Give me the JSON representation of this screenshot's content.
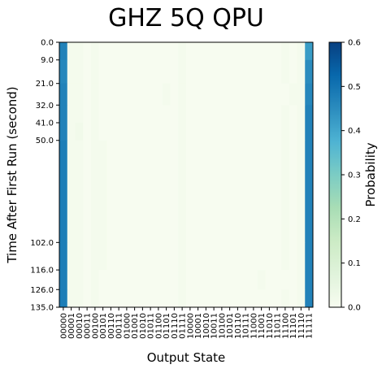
{
  "chart_data": {
    "type": "heatmap",
    "title": "GHZ 5Q QPU",
    "xlabel": "Output State",
    "ylabel": "Time After First Run (second)",
    "colorbar_label": "Probability",
    "colorbar_ticks": [
      "0.0",
      "0.1",
      "0.2",
      "0.3",
      "0.4",
      "0.5",
      "0.6"
    ],
    "colorbar_range": [
      0.0,
      0.6
    ],
    "colormap": "GnBu",
    "x_categories": [
      "00000",
      "00001",
      "00010",
      "00011",
      "00100",
      "00101",
      "00110",
      "00111",
      "01000",
      "01001",
      "01010",
      "01011",
      "01100",
      "01101",
      "01110",
      "01111",
      "10000",
      "10001",
      "10010",
      "10011",
      "10100",
      "10101",
      "10110",
      "10111",
      "11000",
      "11001",
      "11010",
      "11011",
      "11100",
      "11101",
      "11110",
      "11111"
    ],
    "y_tick_labels": [
      "0.0",
      "9.0",
      "21.0",
      "32.0",
      "41.0",
      "50.0",
      "102.0",
      "116.0",
      "126.0",
      "135.0"
    ],
    "y_ticks": [
      0,
      9,
      21,
      32,
      41,
      50,
      102,
      116,
      126,
      135
    ],
    "y_range": [
      0,
      135
    ],
    "time_rows": [
      0,
      9,
      21,
      32,
      41,
      50,
      102,
      116,
      126,
      135
    ],
    "row_values": [
      [
        0.47,
        0.01,
        0.01,
        0.0,
        0.01,
        0.0,
        0.0,
        0.0,
        0.0,
        0.0,
        0.0,
        0.0,
        0.0,
        0.0,
        0.0,
        0.01,
        0.0,
        0.0,
        0.0,
        0.0,
        0.0,
        0.0,
        0.0,
        0.0,
        0.0,
        0.0,
        0.0,
        0.0,
        0.01,
        0.0,
        0.01,
        0.42
      ],
      [
        0.46,
        0.01,
        0.01,
        0.0,
        0.01,
        0.0,
        0.0,
        0.0,
        0.0,
        0.0,
        0.0,
        0.0,
        0.0,
        0.0,
        0.0,
        0.01,
        0.0,
        0.0,
        0.0,
        0.0,
        0.0,
        0.0,
        0.0,
        0.0,
        0.0,
        0.0,
        0.0,
        0.0,
        0.01,
        0.0,
        0.01,
        0.45
      ],
      [
        0.47,
        0.01,
        0.01,
        0.0,
        0.01,
        0.0,
        0.0,
        0.0,
        0.0,
        0.0,
        0.0,
        0.0,
        0.0,
        0.01,
        0.0,
        0.01,
        0.0,
        0.0,
        0.0,
        0.0,
        0.0,
        0.0,
        0.0,
        0.0,
        0.0,
        0.0,
        0.0,
        0.0,
        0.0,
        0.01,
        0.01,
        0.46
      ],
      [
        0.47,
        0.01,
        0.01,
        0.0,
        0.01,
        0.0,
        0.0,
        0.0,
        0.0,
        0.0,
        0.0,
        0.0,
        0.0,
        0.0,
        0.0,
        0.01,
        0.0,
        0.0,
        0.0,
        0.0,
        0.0,
        0.0,
        0.0,
        0.0,
        0.0,
        0.0,
        0.0,
        0.0,
        0.01,
        0.0,
        0.01,
        0.47
      ],
      [
        0.47,
        0.01,
        0.02,
        0.0,
        0.01,
        0.0,
        0.0,
        0.0,
        0.0,
        0.0,
        0.0,
        0.0,
        0.0,
        0.0,
        0.0,
        0.01,
        0.0,
        0.0,
        0.0,
        0.0,
        0.0,
        0.0,
        0.0,
        0.0,
        0.0,
        0.0,
        0.0,
        0.0,
        0.01,
        0.0,
        0.01,
        0.47
      ],
      [
        0.48,
        0.01,
        0.01,
        0.0,
        0.01,
        0.01,
        0.0,
        0.0,
        0.0,
        0.0,
        0.0,
        0.0,
        0.0,
        0.0,
        0.0,
        0.01,
        0.0,
        0.0,
        0.0,
        0.0,
        0.0,
        0.0,
        0.0,
        0.0,
        0.0,
        0.0,
        0.0,
        0.0,
        0.01,
        0.0,
        0.01,
        0.47
      ],
      [
        0.48,
        0.01,
        0.01,
        0.0,
        0.01,
        0.01,
        0.0,
        0.0,
        0.0,
        0.0,
        0.0,
        0.0,
        0.0,
        0.0,
        0.0,
        0.01,
        0.0,
        0.0,
        0.0,
        0.0,
        0.0,
        0.0,
        0.0,
        0.0,
        0.0,
        0.0,
        0.0,
        0.0,
        0.01,
        0.0,
        0.01,
        0.47
      ],
      [
        0.48,
        0.01,
        0.01,
        0.0,
        0.01,
        0.0,
        0.0,
        0.0,
        0.0,
        0.0,
        0.0,
        0.0,
        0.0,
        0.0,
        0.0,
        0.01,
        0.0,
        0.0,
        0.0,
        0.0,
        0.0,
        0.0,
        0.0,
        0.0,
        0.0,
        0.01,
        0.0,
        0.0,
        0.0,
        0.0,
        0.01,
        0.47
      ],
      [
        0.48,
        0.01,
        0.01,
        0.0,
        0.01,
        0.0,
        0.0,
        0.0,
        0.0,
        0.0,
        0.0,
        0.0,
        0.0,
        0.0,
        0.0,
        0.01,
        0.0,
        0.0,
        0.0,
        0.0,
        0.0,
        0.0,
        0.0,
        0.0,
        0.0,
        0.0,
        0.0,
        0.0,
        0.01,
        0.0,
        0.01,
        0.47
      ],
      [
        0.48,
        0.01,
        0.01,
        0.0,
        0.01,
        0.0,
        0.0,
        0.0,
        0.0,
        0.0,
        0.0,
        0.0,
        0.0,
        0.0,
        0.0,
        0.01,
        0.0,
        0.0,
        0.0,
        0.0,
        0.0,
        0.0,
        0.0,
        0.0,
        0.0,
        0.0,
        0.0,
        0.0,
        0.01,
        0.0,
        0.01,
        0.47
      ]
    ],
    "grid": false,
    "legend": "colorbar-right"
  }
}
